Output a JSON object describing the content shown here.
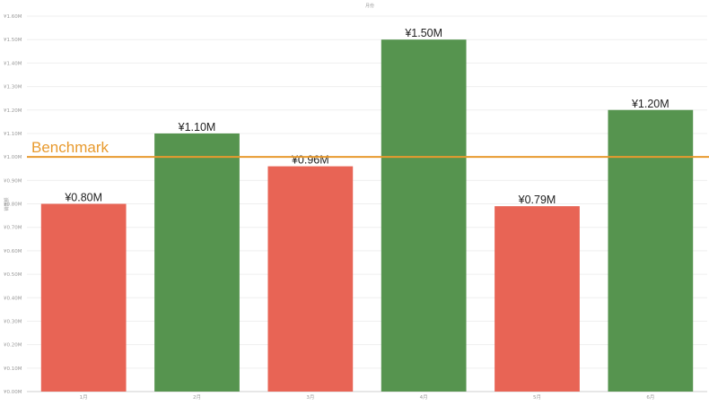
{
  "chart_data": {
    "type": "bar",
    "title": "月份",
    "xlabel": "",
    "ylabel": "销售额",
    "categories": [
      "1月",
      "2月",
      "3月",
      "4月",
      "5月",
      "6月"
    ],
    "values": [
      0.8,
      1.1,
      0.96,
      1.5,
      0.79,
      1.2
    ],
    "value_labels": [
      "¥0.80M",
      "¥1.10M",
      "¥0.96M",
      "¥1.50M",
      "¥0.79M",
      "¥1.20M"
    ],
    "ylim": [
      0,
      1.6
    ],
    "yticks": [
      0,
      0.1,
      0.2,
      0.3,
      0.4,
      0.5,
      0.6,
      0.7,
      0.8,
      0.9,
      1.0,
      1.1,
      1.2,
      1.3,
      1.4,
      1.5,
      1.6
    ],
    "ytick_labels": [
      "¥0.00M",
      "¥0.10M",
      "¥0.20M",
      "¥0.30M",
      "¥0.40M",
      "¥0.50M",
      "¥0.60M",
      "¥0.70M",
      "¥0.80M",
      "¥0.90M",
      "¥1.00M",
      "¥1.10M",
      "¥1.20M",
      "¥1.30M",
      "¥1.40M",
      "¥1.50M",
      "¥1.60M"
    ],
    "benchmark": {
      "label": "Benchmark",
      "value": 1.0
    },
    "grid": true,
    "colors": {
      "above": "#56944f",
      "below": "#e86455",
      "benchmark": "#e89a2e"
    }
  }
}
